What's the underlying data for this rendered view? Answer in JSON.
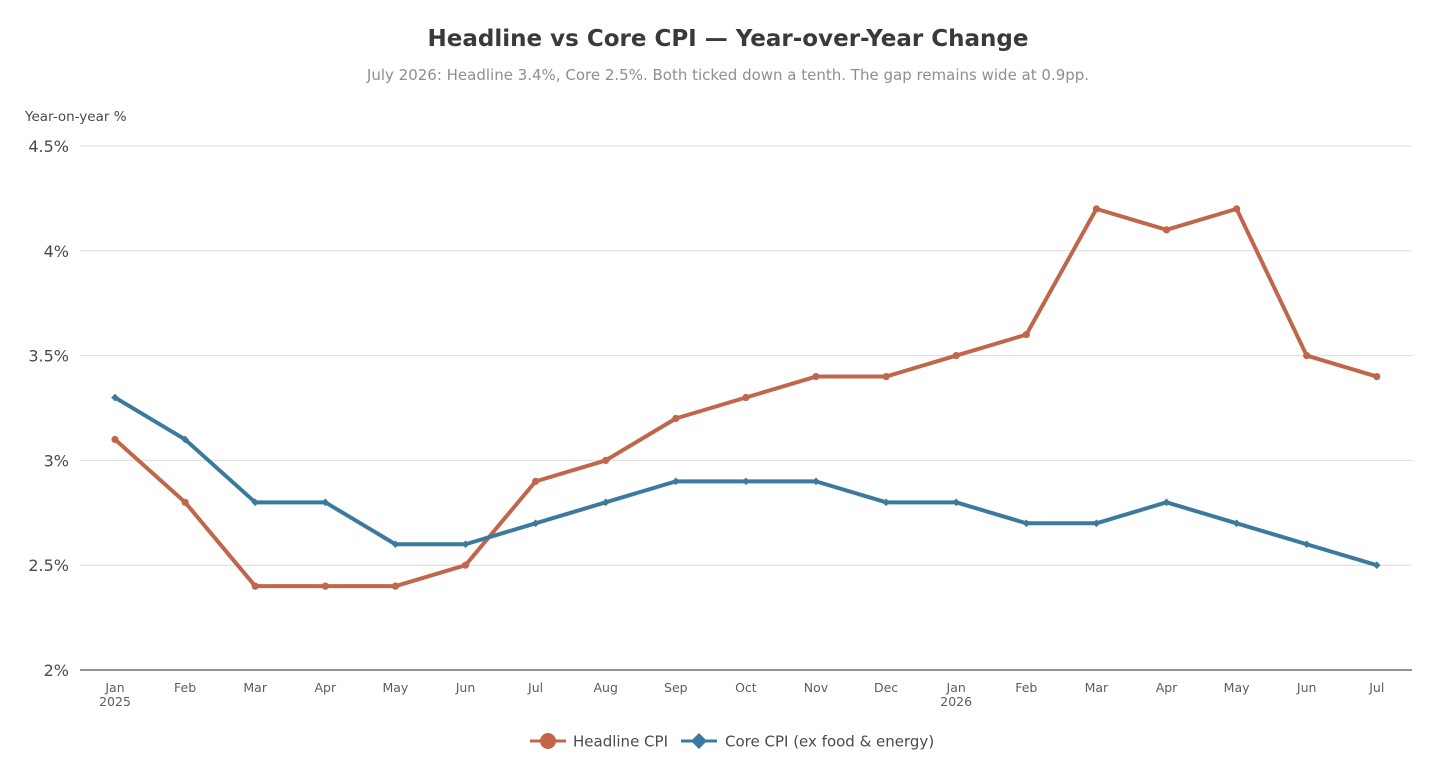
{
  "chart_data": {
    "type": "line",
    "title": "Headline vs Core CPI — Year-over-Year Change",
    "subtitle": "July 2026: Headline 3.4%, Core 2.5%. Both ticked down a tenth. The gap remains wide at 0.9pp.",
    "ylabel": "Year-on-year %",
    "xlabel": "",
    "ylim": [
      2,
      4.5
    ],
    "yticks": [
      2,
      2.5,
      3,
      3.5,
      4,
      4.5
    ],
    "ytick_labels": [
      "2%",
      "2.5%",
      "3%",
      "3.5%",
      "4%",
      "4.5%"
    ],
    "categories": [
      "2025-01",
      "2025-02",
      "2025-03",
      "2025-04",
      "2025-05",
      "2025-06",
      "2025-07",
      "2025-08",
      "2025-09",
      "2025-10",
      "2025-11",
      "2025-12",
      "2026-01",
      "2026-02",
      "2026-03",
      "2026-04",
      "2026-05",
      "2026-06",
      "2026-07"
    ],
    "xtick_labels": [
      [
        "Jan",
        "2025"
      ],
      [
        "Feb"
      ],
      [
        "Mar"
      ],
      [
        "Apr"
      ],
      [
        "May"
      ],
      [
        "Jun"
      ],
      [
        "Jul"
      ],
      [
        "Aug"
      ],
      [
        "Sep"
      ],
      [
        "Oct"
      ],
      [
        "Nov"
      ],
      [
        "Dec"
      ],
      [
        "Jan",
        "2026"
      ],
      [
        "Feb"
      ],
      [
        "Mar"
      ],
      [
        "Apr"
      ],
      [
        "May"
      ],
      [
        "Jun"
      ],
      [
        "Jul"
      ]
    ],
    "grid": true,
    "legend_position": "bottom-center",
    "series": [
      {
        "name": "Headline CPI",
        "color": "#c0664a",
        "marker": "circle",
        "values": [
          3.1,
          2.8,
          2.4,
          2.4,
          2.4,
          2.5,
          2.9,
          3.0,
          3.2,
          3.3,
          3.4,
          3.4,
          3.5,
          3.6,
          4.2,
          4.1,
          4.2,
          3.5,
          3.4
        ]
      },
      {
        "name": "Core CPI (ex food & energy)",
        "color": "#3b7a9e",
        "marker": "diamond",
        "values": [
          3.3,
          3.1,
          2.8,
          2.8,
          2.6,
          2.6,
          2.7,
          2.8,
          2.9,
          2.9,
          2.9,
          2.8,
          2.8,
          2.7,
          2.7,
          2.8,
          2.7,
          2.6,
          2.5
        ]
      }
    ]
  }
}
